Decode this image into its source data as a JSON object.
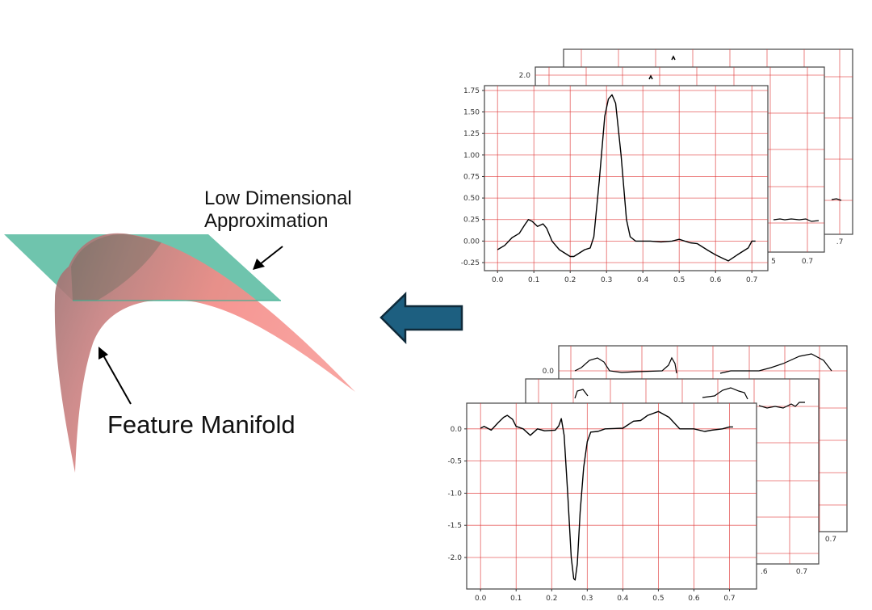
{
  "labels": {
    "approximation": [
      "Low Dimensional",
      "Approximation"
    ],
    "manifold": "Feature Manifold"
  },
  "colors": {
    "plane": "#3fb092",
    "manifold_light": "#f48a86",
    "manifold_dark": "#a07070",
    "arrow_fill": "#1d5f80",
    "arrow_stroke": "#0f2a3a",
    "grid": "#e03a3a",
    "curve": "#000000"
  },
  "icons": {
    "flow_arrow": "left-arrow-icon"
  },
  "chart_data": [
    {
      "type": "line",
      "grid": true,
      "xlim": [
        -0.036,
        0.744
      ],
      "ylim": [
        -0.344,
        1.806
      ],
      "xticks": [
        "0.0",
        "0.1",
        "0.2",
        "0.3",
        "0.4",
        "0.5",
        "0.6",
        "0.7"
      ],
      "yticks": [
        "-0.25",
        "0.00",
        "0.25",
        "0.50",
        "0.75",
        "1.00",
        "1.25",
        "1.50",
        "1.75"
      ],
      "x": [
        0,
        0.02,
        0.04,
        0.06,
        0.075,
        0.085,
        0.095,
        0.11,
        0.125,
        0.135,
        0.15,
        0.17,
        0.2,
        0.21,
        0.24,
        0.255,
        0.265,
        0.28,
        0.295,
        0.305,
        0.315,
        0.325,
        0.34,
        0.355,
        0.365,
        0.38,
        0.42,
        0.45,
        0.48,
        0.5,
        0.53,
        0.55,
        0.58,
        0.6,
        0.62,
        0.635,
        0.66,
        0.69,
        0.7,
        0.71
      ],
      "y": [
        -0.1,
        -0.05,
        0.04,
        0.09,
        0.19,
        0.25,
        0.23,
        0.17,
        0.2,
        0.15,
        0.0,
        -0.1,
        -0.18,
        -0.18,
        -0.1,
        -0.08,
        0.05,
        0.7,
        1.45,
        1.65,
        1.7,
        1.6,
        1.0,
        0.25,
        0.05,
        0.0,
        0.0,
        -0.01,
        0.0,
        0.02,
        -0.02,
        -0.03,
        -0.11,
        -0.16,
        -0.2,
        -0.23,
        -0.16,
        -0.08,
        0.0,
        0.0
      ]
    },
    {
      "type": "line",
      "grid": true,
      "xlim": [
        -0.039,
        0.776
      ],
      "ylim": [
        -2.49,
        0.4
      ],
      "xticks": [
        "0.0",
        "0.1",
        "0.2",
        "0.3",
        "0.4",
        "0.5",
        "0.6",
        "0.7"
      ],
      "yticks": [
        "-2.0",
        "-1.5",
        "-1.0",
        "-0.5",
        "0.0"
      ],
      "x": [
        0,
        0.01,
        0.03,
        0.05,
        0.065,
        0.075,
        0.09,
        0.1,
        0.12,
        0.14,
        0.16,
        0.18,
        0.21,
        0.22,
        0.227,
        0.235,
        0.245,
        0.255,
        0.262,
        0.266,
        0.272,
        0.28,
        0.29,
        0.3,
        0.31,
        0.33,
        0.35,
        0.4,
        0.43,
        0.45,
        0.47,
        0.5,
        0.53,
        0.56,
        0.6,
        0.63,
        0.65,
        0.68,
        0.7,
        0.71
      ],
      "y": [
        0.01,
        0.04,
        -0.02,
        0.1,
        0.18,
        0.21,
        0.15,
        0.04,
        0.0,
        -0.1,
        0.0,
        -0.03,
        -0.02,
        0.05,
        0.16,
        -0.1,
        -1.0,
        -2.0,
        -2.33,
        -2.35,
        -2.1,
        -1.3,
        -0.6,
        -0.2,
        -0.05,
        -0.04,
        0.0,
        0.01,
        0.12,
        0.13,
        0.21,
        0.27,
        0.18,
        0.0,
        0.0,
        -0.04,
        -0.02,
        0.0,
        0.03,
        0.03
      ]
    }
  ],
  "background_chart_labels": {
    "top_middle_ytick": "2.0",
    "top_middle_xtick_partial": "5",
    "top_middle_xtick": "0.7",
    "top_back_xtick": ".7",
    "bottom_back_ytick": "0.0",
    "bottom_middle_xtick_partial": ".6",
    "bottom_middle_xtick": "0.7",
    "bottom_back_xtick": "0.7"
  }
}
